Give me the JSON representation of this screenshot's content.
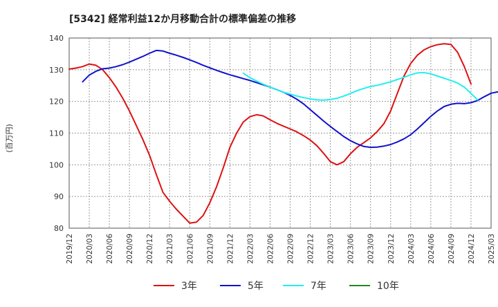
{
  "chart_data": {
    "type": "line",
    "title": "[5342]  経常利益12か月移動合計の標準偏差の推移",
    "ylabel": "(百万円)",
    "xlabel": "",
    "ylim": [
      80,
      140
    ],
    "yticks": [
      80,
      90,
      100,
      110,
      120,
      130,
      140
    ],
    "grid": true,
    "legend_position": "bottom",
    "x_tick_labels": [
      "2019/12",
      "2020/03",
      "2020/06",
      "2020/09",
      "2020/12",
      "2021/03",
      "2021/06",
      "2021/09",
      "2021/12",
      "2022/03",
      "2022/06",
      "2022/09",
      "2022/12",
      "2023/03",
      "2023/06",
      "2023/09",
      "2023/12",
      "2024/03",
      "2024/06",
      "2024/09",
      "2024/12",
      "2025/03"
    ],
    "series": [
      {
        "name": "3年",
        "color": "#dd1111",
        "start": "2019/12",
        "values": [
          130.2,
          130.5,
          131,
          131.8,
          131.4,
          130,
          127.5,
          124.5,
          121,
          117,
          112.5,
          108,
          103,
          97,
          91.3,
          88.5,
          86,
          83.8,
          81.6,
          81.9,
          84,
          88,
          93,
          99,
          105.5,
          110,
          113.5,
          115.2,
          115.8,
          115.4,
          114.2,
          113.1,
          112.2,
          111.3,
          110.4,
          109.2,
          107.8,
          106,
          103.6,
          101,
          100,
          101,
          103.5,
          105.5,
          107,
          108.5,
          110.5,
          113,
          117,
          122.5,
          128,
          132,
          134.6,
          136.3,
          137.3,
          137.9,
          138.2,
          138,
          135.5,
          131,
          125.5
        ]
      },
      {
        "name": "5年",
        "color": "#1111cc",
        "start": "2020/02",
        "values": [
          126.2,
          128.3,
          129.5,
          130.3,
          130.5,
          131,
          131.6,
          132.4,
          133.3,
          134.2,
          135.2,
          136.1,
          135.9,
          135.2,
          134.6,
          133.9,
          133.1,
          132.3,
          131.4,
          130.6,
          129.8,
          129.1,
          128.4,
          127.8,
          127.2,
          126.6,
          125.9,
          125.2,
          124.5,
          123.7,
          122.9,
          121.9,
          120.7,
          119.2,
          117.4,
          115.6,
          113.8,
          112.1,
          110.5,
          108.9,
          107.6,
          106.6,
          105.8,
          105.5,
          105.6,
          105.9,
          106.4,
          107.2,
          108.2,
          109.5,
          111.3,
          113.3,
          115.3,
          117,
          118.4,
          119.1,
          119.4,
          119.3,
          119.6,
          120.3,
          121.5,
          122.6,
          123,
          122.9,
          122.8
        ]
      },
      {
        "name": "7年",
        "color": "#22eeee",
        "start": "2022/02",
        "values": [
          128.9,
          127.5,
          126.4,
          125.4,
          124.5,
          123.7,
          122.9,
          122.3,
          121.7,
          121.2,
          120.8,
          120.5,
          120.4,
          120.6,
          121,
          121.7,
          122.5,
          123.4,
          124.1,
          124.7,
          125.1,
          125.6,
          126.2,
          126.9,
          127.6,
          128.4,
          129,
          129.1,
          128.7,
          128,
          127.3,
          126.6,
          125.8,
          124.5,
          122.5,
          120.5
        ]
      },
      {
        "name": "10年",
        "color": "#228822",
        "start": "2024/12",
        "values": []
      }
    ]
  }
}
